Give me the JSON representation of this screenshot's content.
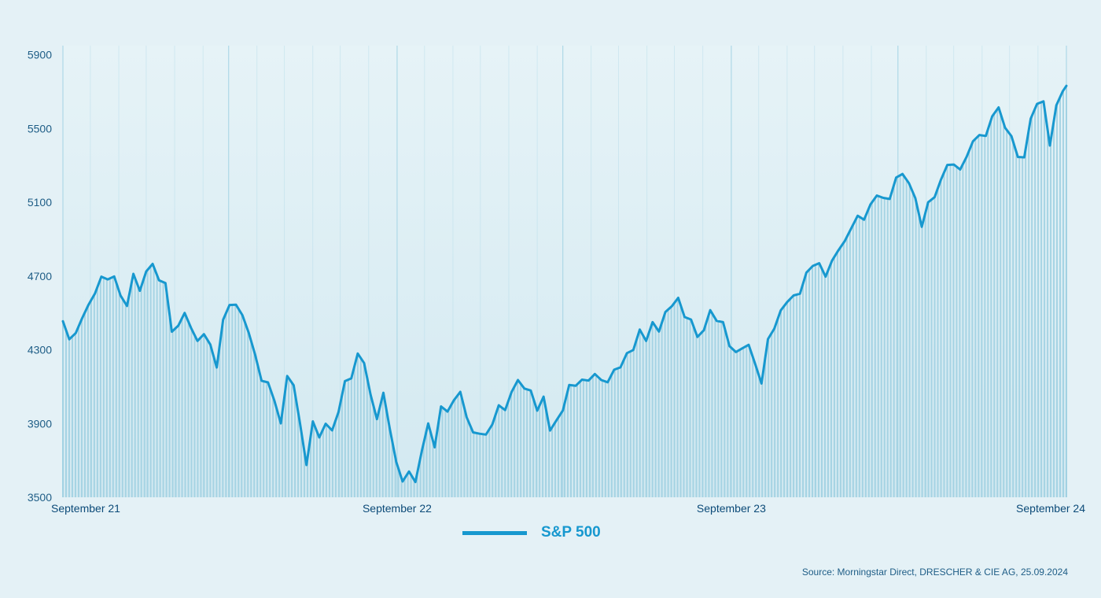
{
  "colors": {
    "background": "#e4f1f6",
    "line": "#1798cf",
    "bars": "#9ccfe0",
    "grid": "#a9d6e6",
    "axis_text": "#1e5d86"
  },
  "legend": {
    "label": "S&P 500"
  },
  "source": "Source: Morningstar Direct, DRESCHER & CIE AG, 25.09.2024",
  "chart_data": {
    "type": "line",
    "xlabel": "",
    "ylabel": "",
    "xlim": [
      "2021-09-24",
      "2024-09-24"
    ],
    "ylim": [
      3500,
      5950
    ],
    "y_ticks": [
      3500,
      3900,
      4300,
      4700,
      5100,
      5500,
      5900
    ],
    "x_ticks": [
      {
        "date": "2021-09-24",
        "label": "September 21"
      },
      {
        "date": "2022-09-24",
        "label": "September 22"
      },
      {
        "date": "2023-09-24",
        "label": "September 23"
      },
      {
        "date": "2024-09-24",
        "label": "September 24"
      }
    ],
    "grid": true,
    "fill_style": "vertical bars under line",
    "series": [
      {
        "name": "S&P 500",
        "points": [
          [
            "2021-09-24",
            4455
          ],
          [
            "2021-10-01",
            4357
          ],
          [
            "2021-10-08",
            4391
          ],
          [
            "2021-10-15",
            4471
          ],
          [
            "2021-10-22",
            4545
          ],
          [
            "2021-10-29",
            4605
          ],
          [
            "2021-11-05",
            4697
          ],
          [
            "2021-11-12",
            4682
          ],
          [
            "2021-11-19",
            4698
          ],
          [
            "2021-11-26",
            4594
          ],
          [
            "2021-12-03",
            4538
          ],
          [
            "2021-12-10",
            4712
          ],
          [
            "2021-12-17",
            4620
          ],
          [
            "2021-12-24",
            4725
          ],
          [
            "2021-12-31",
            4766
          ],
          [
            "2022-01-07",
            4677
          ],
          [
            "2022-01-14",
            4662
          ],
          [
            "2022-01-21",
            4398
          ],
          [
            "2022-01-28",
            4431
          ],
          [
            "2022-02-04",
            4500
          ],
          [
            "2022-02-11",
            4418
          ],
          [
            "2022-02-18",
            4348
          ],
          [
            "2022-02-25",
            4385
          ],
          [
            "2022-03-04",
            4329
          ],
          [
            "2022-03-11",
            4204
          ],
          [
            "2022-03-18",
            4463
          ],
          [
            "2022-03-25",
            4543
          ],
          [
            "2022-04-01",
            4545
          ],
          [
            "2022-04-08",
            4488
          ],
          [
            "2022-04-15",
            4392
          ],
          [
            "2022-04-22",
            4272
          ],
          [
            "2022-04-29",
            4132
          ],
          [
            "2022-05-06",
            4123
          ],
          [
            "2022-05-13",
            4024
          ],
          [
            "2022-05-20",
            3901
          ],
          [
            "2022-05-27",
            4158
          ],
          [
            "2022-06-03",
            4108
          ],
          [
            "2022-06-10",
            3901
          ],
          [
            "2022-06-17",
            3675
          ],
          [
            "2022-06-24",
            3912
          ],
          [
            "2022-07-01",
            3825
          ],
          [
            "2022-07-08",
            3899
          ],
          [
            "2022-07-15",
            3863
          ],
          [
            "2022-07-22",
            3962
          ],
          [
            "2022-07-29",
            4130
          ],
          [
            "2022-08-05",
            4145
          ],
          [
            "2022-08-12",
            4280
          ],
          [
            "2022-08-19",
            4228
          ],
          [
            "2022-08-26",
            4057
          ],
          [
            "2022-09-02",
            3924
          ],
          [
            "2022-09-09",
            4067
          ],
          [
            "2022-09-16",
            3873
          ],
          [
            "2022-09-23",
            3693
          ],
          [
            "2022-09-30",
            3586
          ],
          [
            "2022-10-07",
            3640
          ],
          [
            "2022-10-14",
            3583
          ],
          [
            "2022-10-21",
            3752
          ],
          [
            "2022-10-28",
            3901
          ],
          [
            "2022-11-04",
            3771
          ],
          [
            "2022-11-11",
            3993
          ],
          [
            "2022-11-18",
            3965
          ],
          [
            "2022-11-25",
            4026
          ],
          [
            "2022-12-02",
            4072
          ],
          [
            "2022-12-09",
            3934
          ],
          [
            "2022-12-16",
            3852
          ],
          [
            "2022-12-23",
            3845
          ],
          [
            "2022-12-30",
            3840
          ],
          [
            "2023-01-06",
            3895
          ],
          [
            "2023-01-13",
            3999
          ],
          [
            "2023-01-20",
            3973
          ],
          [
            "2023-01-27",
            4071
          ],
          [
            "2023-02-03",
            4136
          ],
          [
            "2023-02-10",
            4090
          ],
          [
            "2023-02-17",
            4079
          ],
          [
            "2023-02-24",
            3970
          ],
          [
            "2023-03-03",
            4046
          ],
          [
            "2023-03-10",
            3862
          ],
          [
            "2023-03-17",
            3917
          ],
          [
            "2023-03-24",
            3971
          ],
          [
            "2023-03-31",
            4109
          ],
          [
            "2023-04-07",
            4105
          ],
          [
            "2023-04-14",
            4138
          ],
          [
            "2023-04-21",
            4133
          ],
          [
            "2023-04-28",
            4169
          ],
          [
            "2023-05-05",
            4136
          ],
          [
            "2023-05-12",
            4124
          ],
          [
            "2023-05-19",
            4192
          ],
          [
            "2023-05-26",
            4205
          ],
          [
            "2023-06-02",
            4282
          ],
          [
            "2023-06-09",
            4299
          ],
          [
            "2023-06-16",
            4410
          ],
          [
            "2023-06-23",
            4348
          ],
          [
            "2023-06-30",
            4450
          ],
          [
            "2023-07-07",
            4399
          ],
          [
            "2023-07-14",
            4505
          ],
          [
            "2023-07-21",
            4536
          ],
          [
            "2023-07-28",
            4582
          ],
          [
            "2023-08-04",
            4478
          ],
          [
            "2023-08-11",
            4464
          ],
          [
            "2023-08-18",
            4370
          ],
          [
            "2023-08-25",
            4406
          ],
          [
            "2023-09-01",
            4515
          ],
          [
            "2023-09-08",
            4457
          ],
          [
            "2023-09-15",
            4450
          ],
          [
            "2023-09-22",
            4320
          ],
          [
            "2023-09-29",
            4288
          ],
          [
            "2023-10-06",
            4308
          ],
          [
            "2023-10-13",
            4327
          ],
          [
            "2023-10-20",
            4224
          ],
          [
            "2023-10-27",
            4117
          ],
          [
            "2023-11-03",
            4358
          ],
          [
            "2023-11-10",
            4415
          ],
          [
            "2023-11-17",
            4514
          ],
          [
            "2023-11-24",
            4559
          ],
          [
            "2023-12-01",
            4595
          ],
          [
            "2023-12-08",
            4604
          ],
          [
            "2023-12-15",
            4719
          ],
          [
            "2023-12-22",
            4755
          ],
          [
            "2023-12-29",
            4770
          ],
          [
            "2024-01-05",
            4697
          ],
          [
            "2024-01-12",
            4784
          ],
          [
            "2024-01-19",
            4840
          ],
          [
            "2024-01-26",
            4891
          ],
          [
            "2024-02-02",
            4959
          ],
          [
            "2024-02-09",
            5027
          ],
          [
            "2024-02-16",
            5006
          ],
          [
            "2024-02-23",
            5089
          ],
          [
            "2024-03-01",
            5137
          ],
          [
            "2024-03-08",
            5124
          ],
          [
            "2024-03-15",
            5118
          ],
          [
            "2024-03-22",
            5234
          ],
          [
            "2024-03-29",
            5254
          ],
          [
            "2024-04-05",
            5204
          ],
          [
            "2024-04-12",
            5123
          ],
          [
            "2024-04-19",
            4967
          ],
          [
            "2024-04-26",
            5100
          ],
          [
            "2024-05-03",
            5128
          ],
          [
            "2024-05-10",
            5223
          ],
          [
            "2024-05-17",
            5303
          ],
          [
            "2024-05-24",
            5305
          ],
          [
            "2024-05-31",
            5278
          ],
          [
            "2024-06-07",
            5347
          ],
          [
            "2024-06-14",
            5431
          ],
          [
            "2024-06-21",
            5465
          ],
          [
            "2024-06-28",
            5460
          ],
          [
            "2024-07-05",
            5567
          ],
          [
            "2024-07-12",
            5615
          ],
          [
            "2024-07-19",
            5505
          ],
          [
            "2024-07-26",
            5459
          ],
          [
            "2024-08-02",
            5346
          ],
          [
            "2024-08-09",
            5344
          ],
          [
            "2024-08-16",
            5554
          ],
          [
            "2024-08-23",
            5634
          ],
          [
            "2024-08-30",
            5648
          ],
          [
            "2024-09-06",
            5408
          ],
          [
            "2024-09-13",
            5626
          ],
          [
            "2024-09-20",
            5702
          ],
          [
            "2024-09-24",
            5732
          ]
        ]
      }
    ]
  }
}
